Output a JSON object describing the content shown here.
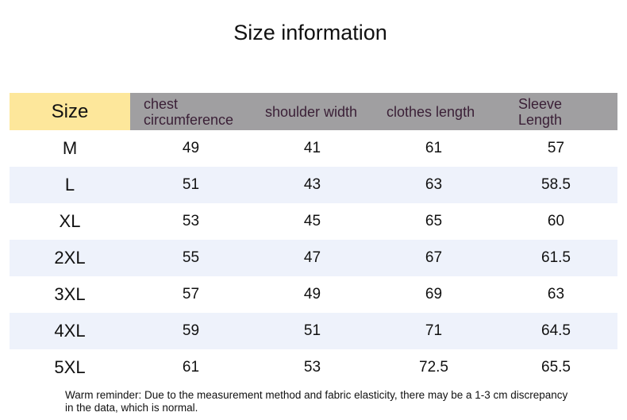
{
  "title": "Size information",
  "table": {
    "headers": [
      "Size",
      "chest circumference",
      "shoulder width",
      "clothes length",
      "Sleeve Length"
    ],
    "rows": [
      [
        "M",
        "49",
        "41",
        "61",
        "57"
      ],
      [
        "L",
        "51",
        "43",
        "63",
        "58.5"
      ],
      [
        "XL",
        "53",
        "45",
        "65",
        "60"
      ],
      [
        "2XL",
        "55",
        "47",
        "67",
        "61.5"
      ],
      [
        "3XL",
        "57",
        "49",
        "69",
        "63"
      ],
      [
        "4XL",
        "59",
        "51",
        "71",
        "64.5"
      ],
      [
        "5XL",
        "61",
        "53",
        "72.5",
        "65.5"
      ]
    ]
  },
  "note": "Warm reminder: Due to the measurement method and fabric elasticity, there may be a 1-3 cm discrepancy in the data, which is normal.",
  "colors": {
    "size_header": "#fde79b",
    "header": "#a09fa1",
    "alt_row": "#eef2fb"
  }
}
